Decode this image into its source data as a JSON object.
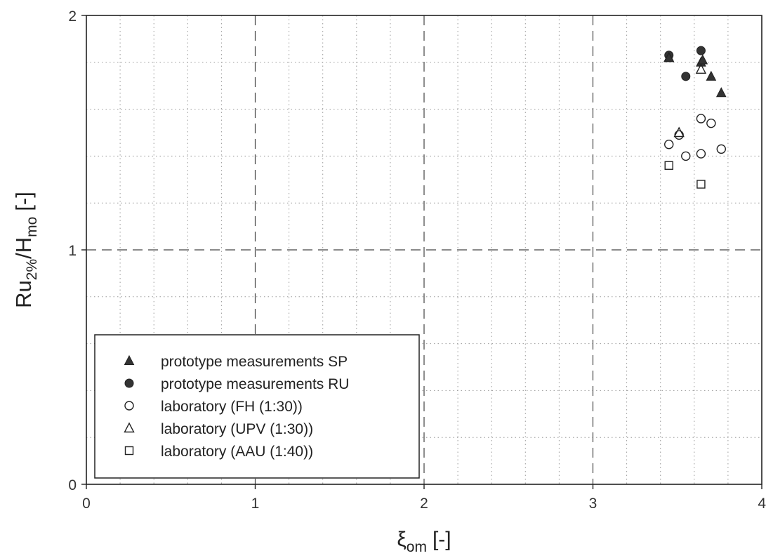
{
  "chart_data": {
    "type": "scatter",
    "title": "",
    "xlabel": {
      "base": "ξ",
      "sub": "om",
      "unit": "[-]"
    },
    "ylabel": {
      "base": "Ru",
      "sub1": "2%",
      "mid": "/H",
      "sub2": "mo",
      "unit": "[-]"
    },
    "xlim": [
      0,
      4
    ],
    "ylim": [
      0,
      2
    ],
    "x_ticks": [
      0,
      1,
      2,
      3,
      4
    ],
    "y_ticks": [
      0,
      1,
      2
    ],
    "x_tick_labels": [
      "0",
      "1",
      "2",
      "3",
      "4"
    ],
    "y_tick_labels": [
      "0",
      "1",
      "2"
    ],
    "grid": "major dashed, minor dotted",
    "legend_position": "bottom-left",
    "series": [
      {
        "name": "prototype measurements SP",
        "marker": "filled-triangle",
        "points": [
          [
            3.45,
            1.82
          ],
          [
            3.64,
            1.8
          ],
          [
            3.7,
            1.74
          ],
          [
            3.76,
            1.67
          ],
          [
            3.65,
            1.81
          ]
        ]
      },
      {
        "name": "prototype measurements RU",
        "marker": "filled-circle",
        "points": [
          [
            3.45,
            1.83
          ],
          [
            3.55,
            1.74
          ],
          [
            3.64,
            1.85
          ]
        ]
      },
      {
        "name": "laboratory (FH (1:30))",
        "marker": "open-circle",
        "points": [
          [
            3.45,
            1.45
          ],
          [
            3.51,
            1.49
          ],
          [
            3.55,
            1.4
          ],
          [
            3.64,
            1.41
          ],
          [
            3.64,
            1.56
          ],
          [
            3.7,
            1.54
          ],
          [
            3.76,
            1.43
          ]
        ]
      },
      {
        "name": "laboratory (UPV (1:30))",
        "marker": "open-triangle",
        "points": [
          [
            3.45,
            1.82
          ],
          [
            3.51,
            1.5
          ],
          [
            3.64,
            1.77
          ]
        ]
      },
      {
        "name": "laboratory (AAU (1:40))",
        "marker": "open-square",
        "points": [
          [
            3.45,
            1.36
          ],
          [
            3.64,
            1.28
          ]
        ]
      }
    ]
  }
}
